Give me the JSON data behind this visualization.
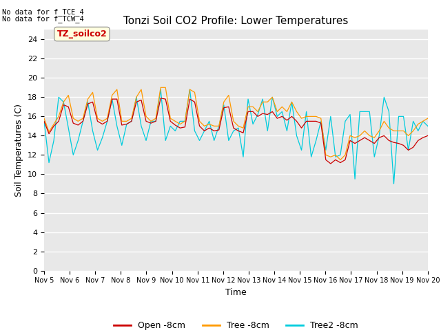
{
  "title": "Tonzi Soil CO2 Profile: Lower Temperatures",
  "xlabel": "Time",
  "ylabel": "Soil Temperatures (C)",
  "top_left_text_line1": "No data for f_TCE_4",
  "top_left_text_line2": "No data for f_TCW_4",
  "watermark_text": "TZ_soilco2",
  "ylim": [
    0,
    25
  ],
  "yticks": [
    0,
    2,
    4,
    6,
    8,
    10,
    12,
    14,
    16,
    18,
    20,
    22,
    24
  ],
  "xtick_labels": [
    "Nov 5",
    "Nov 6",
    "Nov 7",
    "Nov 8",
    "Nov 9",
    "Nov 10",
    "Nov 11",
    "Nov 12",
    "Nov 13",
    "Nov 14",
    "Nov 15",
    "Nov 16",
    "Nov 17",
    "Nov 18",
    "Nov 19",
    "Nov 20"
  ],
  "legend_labels": [
    "Open -8cm",
    "Tree -8cm",
    "Tree2 -8cm"
  ],
  "legend_colors": [
    "#cc0000",
    "#ff9900",
    "#00ccdd"
  ],
  "fig_bg_color": "#ffffff",
  "plot_bg_color": "#e8e8e8",
  "open_8cm": [
    15.5,
    14.2,
    15.0,
    15.5,
    17.2,
    17.0,
    15.3,
    15.1,
    15.5,
    17.3,
    17.5,
    15.5,
    15.2,
    15.5,
    17.8,
    17.8,
    15.1,
    15.2,
    15.5,
    17.5,
    17.7,
    15.5,
    15.3,
    15.5,
    17.9,
    17.8,
    15.5,
    15.1,
    14.8,
    14.9,
    17.8,
    17.5,
    15.0,
    14.5,
    14.8,
    14.5,
    14.6,
    16.9,
    17.0,
    14.8,
    14.5,
    14.3,
    16.5,
    16.5,
    16.0,
    16.3,
    16.2,
    16.5,
    15.8,
    16.0,
    15.6,
    16.0,
    15.5,
    14.8,
    15.5,
    15.5,
    15.5,
    15.3,
    11.5,
    11.1,
    11.5,
    11.2,
    11.5,
    13.5,
    13.2,
    13.5,
    13.8,
    13.5,
    13.2,
    13.8,
    14.0,
    13.5,
    13.3,
    13.2,
    13.0,
    12.5,
    12.8,
    13.5,
    13.8,
    14.0
  ],
  "tree_8cm": [
    15.8,
    14.4,
    15.2,
    16.0,
    17.5,
    18.2,
    15.8,
    15.5,
    15.8,
    17.8,
    18.5,
    15.8,
    15.5,
    15.8,
    18.2,
    18.8,
    15.5,
    15.5,
    15.8,
    18.0,
    18.8,
    16.0,
    15.5,
    15.8,
    19.0,
    19.0,
    15.8,
    15.5,
    15.2,
    15.5,
    18.8,
    18.5,
    15.5,
    15.0,
    15.2,
    15.0,
    15.0,
    17.5,
    18.2,
    15.5,
    15.0,
    14.8,
    17.0,
    17.0,
    16.5,
    17.5,
    17.5,
    18.0,
    16.5,
    17.0,
    16.5,
    17.5,
    16.5,
    15.8,
    16.0,
    16.0,
    16.0,
    15.8,
    12.0,
    11.8,
    12.0,
    11.5,
    12.0,
    14.0,
    13.8,
    14.0,
    14.5,
    14.0,
    13.8,
    14.5,
    15.5,
    14.8,
    14.5,
    14.5,
    14.5,
    14.0,
    14.5,
    15.2,
    15.5,
    15.8
  ],
  "tree2_8cm": [
    15.5,
    11.2,
    13.5,
    18.0,
    17.5,
    14.8,
    12.0,
    13.5,
    15.5,
    17.5,
    14.5,
    12.5,
    13.8,
    15.5,
    17.8,
    15.0,
    13.0,
    15.2,
    15.5,
    18.0,
    15.0,
    13.5,
    15.5,
    15.5,
    18.8,
    13.5,
    15.0,
    14.5,
    15.5,
    15.5,
    18.8,
    14.5,
    13.5,
    14.5,
    15.5,
    13.5,
    15.0,
    17.2,
    13.5,
    14.5,
    14.8,
    11.8,
    17.8,
    15.2,
    16.2,
    17.8,
    14.5,
    18.0,
    16.0,
    16.5,
    14.5,
    17.5,
    14.0,
    12.5,
    16.5,
    11.8,
    13.5,
    15.5,
    12.5,
    16.0,
    11.8,
    12.0,
    15.5,
    16.2,
    9.5,
    16.5,
    16.5,
    16.5,
    11.8,
    14.0,
    18.0,
    16.5,
    9.0,
    16.0,
    16.0,
    12.5,
    15.5,
    14.5,
    15.5,
    15.0
  ]
}
